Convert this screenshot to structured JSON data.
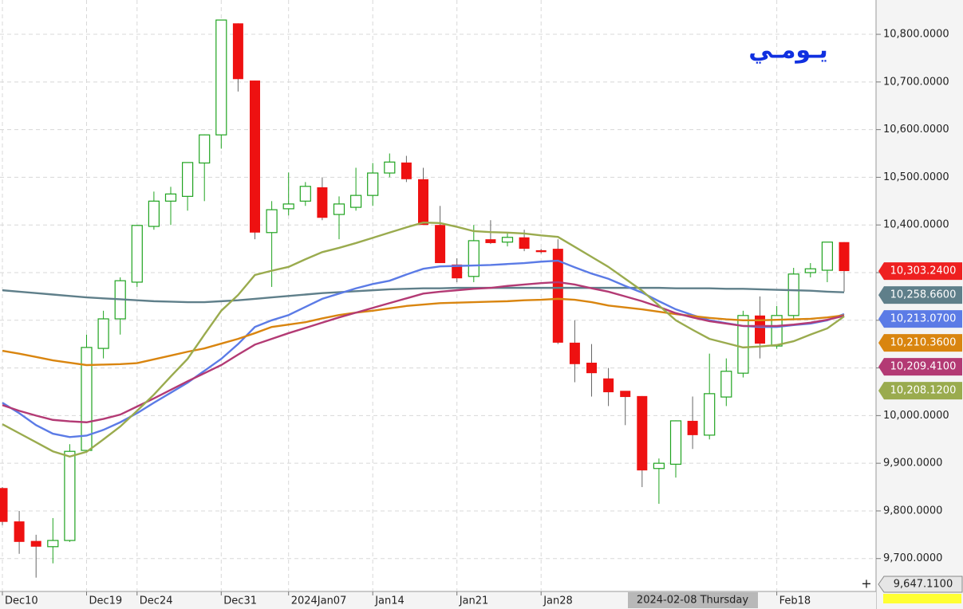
{
  "chart_data": {
    "type": "candlestick",
    "title": "يـومـي",
    "categories": [
      "Dec10",
      null,
      null,
      null,
      null,
      "Dec19",
      null,
      null,
      "Dec24",
      null,
      null,
      null,
      null,
      "Dec31",
      null,
      null,
      null,
      "2024Jan07",
      null,
      null,
      null,
      null,
      "Jan14",
      null,
      null,
      null,
      null,
      "Jan21",
      null,
      null,
      null,
      null,
      "Jan28",
      null,
      null,
      null,
      null,
      null,
      null,
      null,
      null,
      null,
      null,
      null,
      null,
      null,
      "Feb18",
      null,
      null,
      null,
      null
    ],
    "candles": {
      "open": [
        9848,
        9778,
        9737,
        9725,
        9738,
        9927,
        10141,
        10203,
        10280,
        10397,
        10450,
        10460,
        10530,
        10589,
        10823,
        10703,
        10384,
        10434,
        10450,
        10479,
        10422,
        10437,
        10462,
        10509,
        10531,
        10496,
        10400,
        10317,
        10292,
        10370,
        10364,
        10374,
        10347,
        10350,
        10153,
        10111,
        10078,
        10052,
        10041,
        9889,
        9898,
        9989,
        9959,
        10039,
        10089,
        10210,
        10146,
        10210,
        10300,
        10305,
        10364
      ],
      "high": [
        9850,
        9800,
        9750,
        9785,
        9940,
        10170,
        10220,
        10290,
        10400,
        10470,
        10480,
        10531,
        10590,
        10830,
        10823,
        10703,
        10450,
        10510,
        10490,
        10500,
        10460,
        10520,
        10530,
        10550,
        10545,
        10520,
        10440,
        10330,
        10400,
        10410,
        10385,
        10390,
        10350,
        10370,
        10200,
        10150,
        10100,
        10050,
        10041,
        9910,
        9990,
        10040,
        10130,
        10120,
        10220,
        10250,
        10230,
        10310,
        10320,
        10364,
        10364
      ],
      "low": [
        9770,
        9710,
        9660,
        9690,
        9735,
        9925,
        10120,
        10170,
        10270,
        10390,
        10400,
        10430,
        10450,
        10560,
        10680,
        10370,
        10270,
        10420,
        10440,
        10410,
        10370,
        10430,
        10440,
        10500,
        10490,
        10400,
        10320,
        10280,
        10280,
        10360,
        10355,
        10345,
        10340,
        10150,
        10070,
        10040,
        10020,
        9980,
        9850,
        9815,
        9870,
        9930,
        9950,
        10020,
        10080,
        10120,
        10140,
        10200,
        10290,
        10280,
        10260
      ],
      "close": [
        9777,
        9735,
        9725,
        9738,
        9925,
        10143,
        10203,
        10283,
        10399,
        10450,
        10465,
        10531,
        10589,
        10830,
        10706,
        10384,
        10432,
        10444,
        10481,
        10415,
        10444,
        10462,
        10509,
        10532,
        10496,
        10400,
        10320,
        10288,
        10367,
        10362,
        10374,
        10350,
        10343,
        10153,
        10108,
        10089,
        10049,
        10039,
        9885,
        9900,
        9989,
        9959,
        10046,
        10093,
        10210,
        10151,
        10210,
        10297,
        10308,
        10364,
        10303.24
      ],
      "up_color": "#1fa31f",
      "down_color": "#ee1111"
    },
    "series": [
      {
        "color": "#5f7f8a",
        "values": [
          10263,
          10260,
          10257,
          10254,
          10251,
          10248,
          10246,
          10244,
          10242,
          10240,
          10239,
          10238,
          10238,
          10240,
          10242,
          10245,
          10248,
          10251,
          10254,
          10257,
          10259,
          10261,
          10263,
          10265,
          10266,
          10267,
          10267,
          10268,
          10268,
          10268,
          10268,
          10268,
          10268,
          10268,
          10268,
          10268,
          10268,
          10268,
          10268,
          10268,
          10267,
          10267,
          10267,
          10266,
          10266,
          10265,
          10264,
          10263,
          10262,
          10260,
          10258.66
        ],
        "value_labels": [
          null,
          null,
          null,
          null,
          null,
          null,
          null,
          null,
          null,
          null,
          null,
          null,
          null,
          null,
          null,
          null,
          null,
          null,
          null,
          null,
          null,
          null,
          null,
          null,
          null,
          null,
          null,
          null,
          null,
          null,
          null,
          null,
          null,
          null,
          null,
          null,
          null,
          null,
          null,
          null,
          null,
          null,
          null,
          null,
          null,
          null,
          null,
          null,
          null,
          null,
          "10,258.6600"
        ]
      },
      {
        "color": "#5b7be6",
        "values": [
          10027,
          10005,
          9980,
          9962,
          9955,
          9958,
          9970,
          9986,
          10005,
          10027,
          10048,
          10069,
          10094,
          10119,
          10150,
          10186,
          10200,
          10211,
          10228,
          10245,
          10256,
          10267,
          10276,
          10283,
          10296,
          10308,
          10313,
          10314,
          10315,
          10316,
          10318,
          10320,
          10323,
          10325,
          10311,
          10298,
          10287,
          10272,
          10258,
          10240,
          10223,
          10211,
          10200,
          10194,
          10188,
          10186,
          10186,
          10190,
          10193,
          10200,
          10213.07
        ],
        "value_labels": [
          null,
          null,
          null,
          null,
          null,
          null,
          null,
          null,
          null,
          null,
          null,
          null,
          null,
          null,
          null,
          null,
          null,
          null,
          null,
          null,
          null,
          null,
          null,
          null,
          null,
          null,
          null,
          null,
          null,
          null,
          null,
          null,
          null,
          null,
          null,
          null,
          null,
          null,
          null,
          null,
          null,
          null,
          null,
          null,
          null,
          null,
          null,
          null,
          null,
          null,
          "10,213.0700"
        ]
      },
      {
        "color": "#d9850f",
        "values": [
          10136,
          10130,
          10123,
          10116,
          10111,
          10106,
          10107,
          10108,
          10110,
          10118,
          10126,
          10134,
          10141,
          10151,
          10161,
          10173,
          10186,
          10191,
          10196,
          10204,
          10211,
          10216,
          10220,
          10225,
          10230,
          10233,
          10236,
          10237,
          10238,
          10239,
          10240,
          10242,
          10243,
          10245,
          10243,
          10238,
          10231,
          10227,
          10223,
          10218,
          10213,
          10209,
          10205,
          10202,
          10200,
          10200,
          10201,
          10202,
          10203,
          10206,
          10210.36
        ],
        "value_labels": [
          null,
          null,
          null,
          null,
          null,
          null,
          null,
          null,
          null,
          null,
          null,
          null,
          null,
          null,
          null,
          null,
          null,
          null,
          null,
          null,
          null,
          null,
          null,
          null,
          null,
          null,
          null,
          null,
          null,
          null,
          null,
          null,
          null,
          null,
          null,
          null,
          null,
          null,
          null,
          null,
          null,
          null,
          null,
          null,
          null,
          null,
          null,
          null,
          null,
          null,
          "10,210.3600"
        ]
      },
      {
        "color": "#b33a74",
        "values": [
          10022,
          10010,
          10000,
          9991,
          9988,
          9986,
          9993,
          10002,
          10019,
          10036,
          10054,
          10072,
          10089,
          10106,
          10128,
          10149,
          10161,
          10173,
          10184,
          10195,
          10206,
          10216,
          10226,
          10236,
          10246,
          10256,
          10260,
          10263,
          10266,
          10268,
          10272,
          10275,
          10278,
          10280,
          10275,
          10267,
          10260,
          10250,
          10240,
          10228,
          10215,
          10206,
          10198,
          10193,
          10188,
          10188,
          10188,
          10191,
          10195,
          10201,
          10209.41
        ],
        "value_labels": [
          null,
          null,
          null,
          null,
          null,
          null,
          null,
          null,
          null,
          null,
          null,
          null,
          null,
          null,
          null,
          null,
          null,
          null,
          null,
          null,
          null,
          null,
          null,
          null,
          null,
          null,
          null,
          null,
          null,
          null,
          null,
          null,
          null,
          null,
          null,
          null,
          null,
          null,
          null,
          null,
          null,
          null,
          null,
          null,
          null,
          null,
          null,
          null,
          null,
          null,
          "10,209.4100"
        ]
      },
      {
        "color": "#9aab4e",
        "values": [
          9982,
          9963,
          9944,
          9925,
          9914,
          9924,
          9950,
          9977,
          10010,
          10044,
          10082,
          10119,
          10170,
          10220,
          10253,
          10295,
          10304,
          10312,
          10328,
          10343,
          10352,
          10362,
          10373,
          10384,
          10395,
          10405,
          10404,
          10396,
          10387,
          10385,
          10384,
          10382,
          10378,
          10375,
          10354,
          10333,
          10312,
          10287,
          10262,
          10231,
          10200,
          10180,
          10161,
          10152,
          10143,
          10145,
          10148,
          10156,
          10170,
          10183,
          10208.12
        ],
        "value_labels": [
          null,
          null,
          null,
          null,
          null,
          null,
          null,
          null,
          null,
          null,
          null,
          null,
          null,
          null,
          null,
          null,
          null,
          null,
          null,
          null,
          null,
          null,
          null,
          null,
          null,
          null,
          null,
          null,
          null,
          null,
          null,
          null,
          null,
          null,
          null,
          null,
          null,
          null,
          null,
          null,
          null,
          null,
          null,
          null,
          null,
          null,
          null,
          null,
          null,
          null,
          "10,208.1200"
        ]
      }
    ],
    "last_price": {
      "value": 10303.24,
      "label": "10,303.2400",
      "color": "#ee2020"
    },
    "cursor_price": {
      "value": 9647.11,
      "label": "9,647.1100"
    },
    "cursor_date": "2024-02-08 Thursday",
    "ylim": [
      9631,
      10872
    ],
    "yticks": [
      {
        "value": 9700,
        "label": "9,700.0000"
      },
      {
        "value": 9800,
        "label": "9,800.0000"
      },
      {
        "value": 9900,
        "label": "9,900.0000"
      },
      {
        "value": 10000,
        "label": "10,000.0000"
      },
      {
        "value": 10100,
        "label": ""
      },
      {
        "value": 10200,
        "label": ""
      },
      {
        "value": 10300,
        "label": ""
      },
      {
        "value": 10400,
        "label": "10,400.0000"
      },
      {
        "value": 10500,
        "label": "10,500.0000"
      },
      {
        "value": 10600,
        "label": "10,600.0000"
      },
      {
        "value": 10700,
        "label": "10,700.0000"
      },
      {
        "value": 10800,
        "label": "10,800.0000"
      }
    ],
    "grid": true
  }
}
